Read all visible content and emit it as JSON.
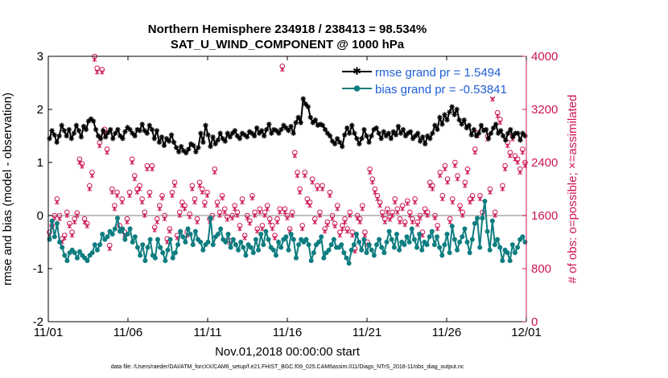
{
  "chart_data": {
    "type": "line",
    "title_line1": "Northern Hemisphere 234918 / 238413 = 98.534%",
    "title_line2": "SAT_U_WIND_COMPONENT @ 1000 hPa",
    "xlabel": "Nov.01,2018 00:00:00 start",
    "ylabel_left": "rmse and bias (model - observation)",
    "ylabel_right": "# of obs: o=possible; ×=assimilated",
    "footer": "data file: /Users/raeder/DAI/ATM_forcXX/CAM6_setup/f.e21.FHIST_BGC.f09_025.CAM6assim.011/Diags_NTrS_2018-11/obs_diag_output.nc",
    "x_tick_labels": [
      "11/01",
      "11/06",
      "11/11",
      "11/16",
      "11/21",
      "11/26",
      "12/01"
    ],
    "x_tick_days": [
      0,
      5,
      10,
      15,
      20,
      25,
      30
    ],
    "xlim": [
      0,
      30
    ],
    "ylim_left": [
      -2,
      3
    ],
    "yticks_left": [
      "-2",
      "-1",
      "0",
      "1",
      "2",
      "3"
    ],
    "ylim_right": [
      0,
      4000
    ],
    "yticks_right": [
      "0",
      "800",
      "1600",
      "2400",
      "3200",
      "4000"
    ],
    "zero_line": 0,
    "colors": {
      "rmse": "#000000",
      "bias": "#0e7d80",
      "obs": "#cc1556",
      "right_axis": "#cc1556",
      "legend_text": "#1f5fd6",
      "zero_line": "#aaaaaa"
    },
    "series": [
      {
        "name": "rmse grand pr = 1.5494",
        "key": "rmse",
        "axis": "left",
        "values": [
          1.45,
          1.6,
          1.52,
          1.38,
          1.5,
          1.7,
          1.6,
          1.5,
          1.62,
          1.45,
          1.55,
          1.7,
          1.6,
          1.48,
          1.68,
          1.62,
          1.78,
          1.82,
          1.78,
          1.62,
          1.5,
          1.45,
          1.6,
          1.48,
          1.56,
          1.62,
          1.45,
          1.55,
          1.62,
          1.5,
          1.45,
          1.58,
          1.66,
          1.62,
          1.55,
          1.5,
          1.62,
          1.6,
          1.72,
          1.6,
          1.55,
          1.7,
          1.62,
          1.45,
          1.6,
          1.38,
          1.48,
          1.32,
          1.45,
          1.4,
          1.52,
          1.38,
          1.28,
          1.2,
          1.3,
          1.22,
          1.18,
          1.25,
          1.35,
          1.32,
          1.2,
          1.28,
          1.55,
          1.38,
          1.7,
          1.52,
          1.3,
          1.48,
          1.35,
          1.42,
          1.55,
          1.45,
          1.4,
          1.55,
          1.48,
          1.55,
          1.6,
          1.5,
          1.45,
          1.55,
          1.52,
          1.48,
          1.58,
          1.55,
          1.5,
          1.65,
          1.55,
          1.6,
          1.5,
          1.62,
          1.72,
          1.55,
          1.62,
          1.6,
          1.55,
          1.62,
          1.7,
          1.65,
          1.6,
          1.68,
          1.55,
          1.75,
          1.85,
          1.75,
          2.2,
          2.1,
          2.05,
          1.85,
          1.75,
          1.8,
          1.7,
          1.72,
          1.7,
          1.62,
          1.55,
          1.5,
          1.4,
          1.35,
          1.45,
          1.38,
          1.3,
          1.52,
          1.65,
          1.55,
          1.7,
          1.55,
          1.45,
          1.35,
          1.45,
          1.62,
          1.5,
          1.38,
          1.5,
          1.62,
          1.65,
          1.55,
          1.45,
          1.58,
          1.5,
          1.55,
          1.45,
          1.58,
          1.52,
          1.68,
          1.55,
          1.62,
          1.5,
          1.55,
          1.58,
          1.45,
          1.5,
          1.55,
          1.4,
          1.48,
          1.35,
          1.5,
          1.45,
          1.55,
          1.7,
          1.62,
          1.85,
          1.72,
          1.9,
          1.8,
          1.95,
          2.05,
          1.9,
          2.0,
          1.8,
          1.72,
          1.8,
          1.65,
          1.7,
          1.52,
          1.62,
          1.5,
          1.55,
          1.7,
          1.6,
          1.62,
          1.45,
          1.55,
          1.65,
          1.72,
          1.55,
          1.6,
          1.5,
          1.42,
          1.55,
          1.62,
          1.48,
          1.55,
          1.55,
          1.42,
          1.55,
          1.5
        ]
      },
      {
        "name": "bias grand pr = -0.53841",
        "key": "bias",
        "axis": "left",
        "values": [
          -0.45,
          -0.1,
          -0.4,
          -0.15,
          -0.5,
          -0.6,
          -0.75,
          -0.85,
          -0.7,
          -0.65,
          -0.7,
          -0.8,
          -0.68,
          -0.75,
          -0.8,
          -0.85,
          -0.75,
          -0.7,
          -0.55,
          -0.65,
          -0.55,
          -0.35,
          -0.45,
          -0.4,
          -0.3,
          -0.35,
          -0.25,
          -0.05,
          -0.3,
          -0.25,
          -0.45,
          -0.35,
          -0.25,
          -0.5,
          -0.4,
          -0.6,
          -0.75,
          -0.55,
          -0.85,
          -0.6,
          -0.45,
          -0.75,
          -0.8,
          -0.45,
          -0.6,
          -0.7,
          -0.85,
          -0.65,
          -0.45,
          -0.8,
          -0.7,
          -0.55,
          -0.3,
          -0.4,
          -0.5,
          -0.25,
          -0.35,
          -0.55,
          -0.3,
          -0.45,
          -0.5,
          -0.65,
          -0.55,
          -0.5,
          -0.05,
          -0.55,
          -0.4,
          -0.35,
          -0.25,
          -0.45,
          -0.5,
          -0.35,
          -0.6,
          -0.45,
          -0.55,
          -0.65,
          -0.5,
          -0.6,
          -0.75,
          -0.55,
          -0.6,
          -0.7,
          -0.45,
          -0.65,
          -0.35,
          -0.55,
          -0.3,
          -0.45,
          -0.6,
          -0.65,
          -0.75,
          -0.5,
          -0.6,
          -0.45,
          -0.4,
          -0.65,
          -0.35,
          -0.45,
          -0.8,
          -0.55,
          -0.45,
          -0.5,
          -0.45,
          -0.55,
          -0.85,
          -0.7,
          -0.55,
          -0.5,
          -0.4,
          -0.8,
          -0.7,
          -0.65,
          -0.55,
          -0.45,
          -0.6,
          -0.6,
          -0.55,
          -0.7,
          -0.8,
          -0.9,
          -0.65,
          -0.55,
          -0.35,
          -0.5,
          -0.65,
          -0.45,
          -0.7,
          -0.55,
          -0.65,
          -0.75,
          -0.55,
          -0.45,
          -0.6,
          -0.7,
          -0.5,
          -0.3,
          -0.45,
          -0.6,
          -0.35,
          -0.65,
          -0.5,
          -0.55,
          -0.4,
          -0.5,
          -0.25,
          -0.45,
          -0.6,
          -0.35,
          -0.65,
          -0.5,
          -0.55,
          -0.4,
          -0.3,
          -0.55,
          -0.4,
          -0.6,
          -0.75,
          -0.55,
          -0.35,
          -0.7,
          -0.2,
          -0.45,
          -0.65,
          -0.5,
          -0.4,
          -0.25,
          -0.5,
          -0.7,
          -0.45,
          -0.15,
          -0.05,
          -0.6,
          -0.05,
          0.27,
          -0.3,
          -0.65,
          -0.1,
          -0.55,
          -0.45,
          -0.6,
          -0.85,
          -0.65,
          -0.7,
          -0.85,
          -0.55,
          -0.7,
          -0.6,
          -0.45,
          -0.4,
          -0.5
        ]
      }
    ],
    "obs_possible": {
      "name": "possible (o)",
      "axis": "right",
      "values": [
        1350,
        1450,
        1600,
        1850,
        1600,
        1250,
        1300,
        1650,
        1480,
        1350,
        1550,
        1640,
        2450,
        2380,
        1550,
        1480,
        2050,
        2250,
        4000,
        3820,
        2700,
        3800,
        2900,
        2600,
        1150,
        2000,
        1750,
        1950,
        1450,
        1850,
        1350,
        1550,
        1950,
        2450,
        2200,
        2000,
        2050,
        1850,
        1650,
        2350,
        1950,
        2350,
        1420,
        1550,
        1750,
        1900,
        1600,
        1250,
        1400,
        1950,
        2100,
        1300,
        1650,
        1800,
        1750,
        1350,
        1620,
        2050,
        1850,
        1550,
        2100,
        2000,
        1800,
        1950,
        1550,
        1600,
        2300,
        1800,
        1650,
        1900,
        1700,
        1580,
        1220,
        1600,
        1750,
        1650,
        1450,
        1850,
        1300,
        1600,
        1520,
        1900,
        1650,
        1400,
        1700,
        1450,
        1650,
        1750,
        1550,
        1450,
        1300,
        1550,
        1700,
        3850,
        1700,
        1600,
        1400,
        1650,
        2550,
        2250,
        2000,
        1450,
        2250,
        1850,
        1800,
        2150,
        1550,
        2050,
        1650,
        2050,
        1400,
        1500,
        1950,
        1600,
        1480,
        1750,
        1350,
        1450,
        1550,
        1400,
        1650,
        1350,
        1100,
        1600,
        1550,
        1750,
        1350,
        1200,
        2300,
        2150,
        2000,
        1900,
        1800,
        1650,
        1550,
        1700,
        1580,
        1650,
        1850,
        1700,
        1550,
        1750,
        1500,
        1820,
        1650,
        1550,
        1850,
        1500,
        1600,
        1350,
        1700,
        1650,
        2100,
        2050,
        1600,
        1450,
        2250,
        1900,
        2350,
        2150,
        1550,
        1850,
        2400,
        2200,
        1750,
        1650,
        2100,
        2300,
        1850,
        1900,
        2600,
        2850,
        1900,
        1650,
        3850,
        2800,
        2000,
        3400,
        1650,
        3150,
        3050,
        2050,
        2350,
        2700,
        2550,
        2800,
        2500,
        2450,
        2300,
        2600,
        2400
      ]
    },
    "obs_assimilated": {
      "name": "assimilated (×)",
      "axis": "right",
      "values": [
        1300,
        1420,
        1560,
        1800,
        1550,
        1200,
        1260,
        1600,
        1440,
        1300,
        1500,
        1600,
        2400,
        2340,
        1500,
        1440,
        2000,
        2200,
        3950,
        3760,
        2650,
        3760,
        2850,
        2550,
        1100,
        1950,
        1700,
        1900,
        1400,
        1800,
        1300,
        1500,
        1900,
        2400,
        2150,
        1950,
        2000,
        1800,
        1600,
        2300,
        1900,
        2300,
        1380,
        1500,
        1700,
        1860,
        1550,
        1200,
        1360,
        1900,
        2050,
        1260,
        1600,
        1750,
        1700,
        1300,
        1580,
        2000,
        1800,
        1500,
        2050,
        1950,
        1750,
        1900,
        1500,
        1560,
        2250,
        1750,
        1600,
        1860,
        1650,
        1540,
        1180,
        1560,
        1700,
        1600,
        1400,
        1800,
        1260,
        1560,
        1480,
        1860,
        1600,
        1360,
        1650,
        1400,
        1600,
        1700,
        1500,
        1400,
        1260,
        1500,
        1650,
        3800,
        1650,
        1560,
        1360,
        1600,
        2500,
        2200,
        1950,
        1400,
        2200,
        1800,
        1750,
        2100,
        1500,
        2000,
        1600,
        2000,
        1360,
        1460,
        1900,
        1550,
        1440,
        1700,
        1300,
        1400,
        1500,
        1360,
        1600,
        1300,
        1060,
        1560,
        1500,
        1700,
        1300,
        1160,
        2250,
        2100,
        1950,
        1850,
        1750,
        1600,
        1500,
        1650,
        1540,
        1600,
        1800,
        1650,
        1500,
        1700,
        1460,
        1780,
        1600,
        1500,
        1800,
        1460,
        1560,
        1300,
        1650,
        1600,
        2050,
        2000,
        1560,
        1400,
        2200,
        1850,
        2300,
        2100,
        1500,
        1800,
        2350,
        2150,
        1700,
        1600,
        2050,
        2250,
        1800,
        1850,
        2550,
        2800,
        1850,
        1600,
        3800,
        2750,
        1950,
        3350,
        1600,
        3100,
        3000,
        2000,
        2300,
        2650,
        2500,
        2750,
        2450,
        2400,
        2250,
        2550,
        2350
      ]
    },
    "legend": [
      {
        "label": "rmse grand pr = 1.5494",
        "key": "rmse"
      },
      {
        "label": "bias grand pr = -0.53841",
        "key": "bias"
      }
    ]
  }
}
